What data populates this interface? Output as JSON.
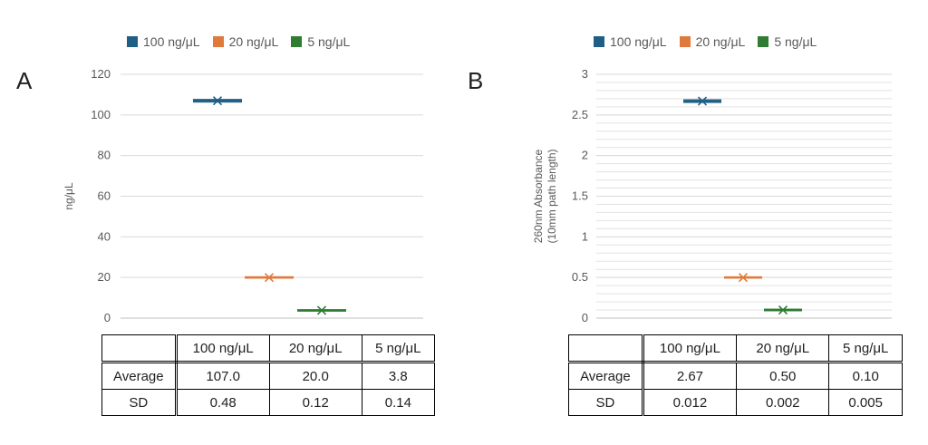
{
  "panels": [
    {
      "letter": "A",
      "legend": [
        "100 ng/μL",
        "20 ng/μL",
        "5 ng/μL"
      ],
      "table": {
        "headers": [
          "",
          "100 ng/μL",
          "20 ng/μL",
          "5 ng/μL"
        ],
        "rows": [
          [
            "Average",
            "107.0",
            "20.0",
            "3.8"
          ],
          [
            "SD",
            "0.48",
            "0.12",
            "0.14"
          ]
        ]
      }
    },
    {
      "letter": "B",
      "legend": [
        "100 ng/μL",
        "20 ng/μL",
        "5 ng/μL"
      ],
      "table": {
        "headers": [
          "",
          "100 ng/μL",
          "20 ng/μL",
          "5 ng/μL"
        ],
        "rows": [
          [
            "Average",
            "2.67",
            "0.50",
            "0.10"
          ],
          [
            "SD",
            "0.012",
            "0.002",
            "0.005"
          ]
        ]
      }
    }
  ],
  "colors": {
    "s100": "#1f5f86",
    "s20": "#e07a3c",
    "s5": "#2e7d32",
    "grid": "#d9d9d9",
    "axis": "#bfbfbf"
  },
  "chart_data": [
    {
      "type": "scatter",
      "title": "",
      "xlabel": "",
      "ylabel": "ng/μL",
      "ylim": [
        0,
        120
      ],
      "yticks": [
        0,
        20,
        40,
        60,
        80,
        100,
        120
      ],
      "grid": "major",
      "legend_position": "top",
      "series": [
        {
          "name": "100 ng/μL",
          "values": [
            107.0
          ],
          "error": [
            0.48
          ]
        },
        {
          "name": "20 ng/μL",
          "values": [
            20.0
          ],
          "error": [
            0.12
          ]
        },
        {
          "name": "5 ng/μL",
          "values": [
            3.8
          ],
          "error": [
            0.14
          ]
        }
      ]
    },
    {
      "type": "scatter",
      "title": "",
      "xlabel": "",
      "ylabel": "260nm Absorbance (10mm path length)",
      "ylabel_lines": [
        "260nm Absorbance",
        "(10mm path length)"
      ],
      "ylim": [
        0,
        3
      ],
      "yticks": [
        0,
        0.5,
        1,
        1.5,
        2,
        2.5,
        3
      ],
      "ytick_labels": [
        "0",
        "0.5",
        "1",
        "1.5",
        "2",
        "2.5",
        "3"
      ],
      "grid": "major+minor",
      "legend_position": "top",
      "series": [
        {
          "name": "100 ng/μL",
          "values": [
            2.67
          ],
          "error": [
            0.012
          ]
        },
        {
          "name": "20 ng/μL",
          "values": [
            0.5
          ],
          "error": [
            0.002
          ]
        },
        {
          "name": "5 ng/μL",
          "values": [
            0.1
          ],
          "error": [
            0.005
          ]
        }
      ]
    }
  ]
}
